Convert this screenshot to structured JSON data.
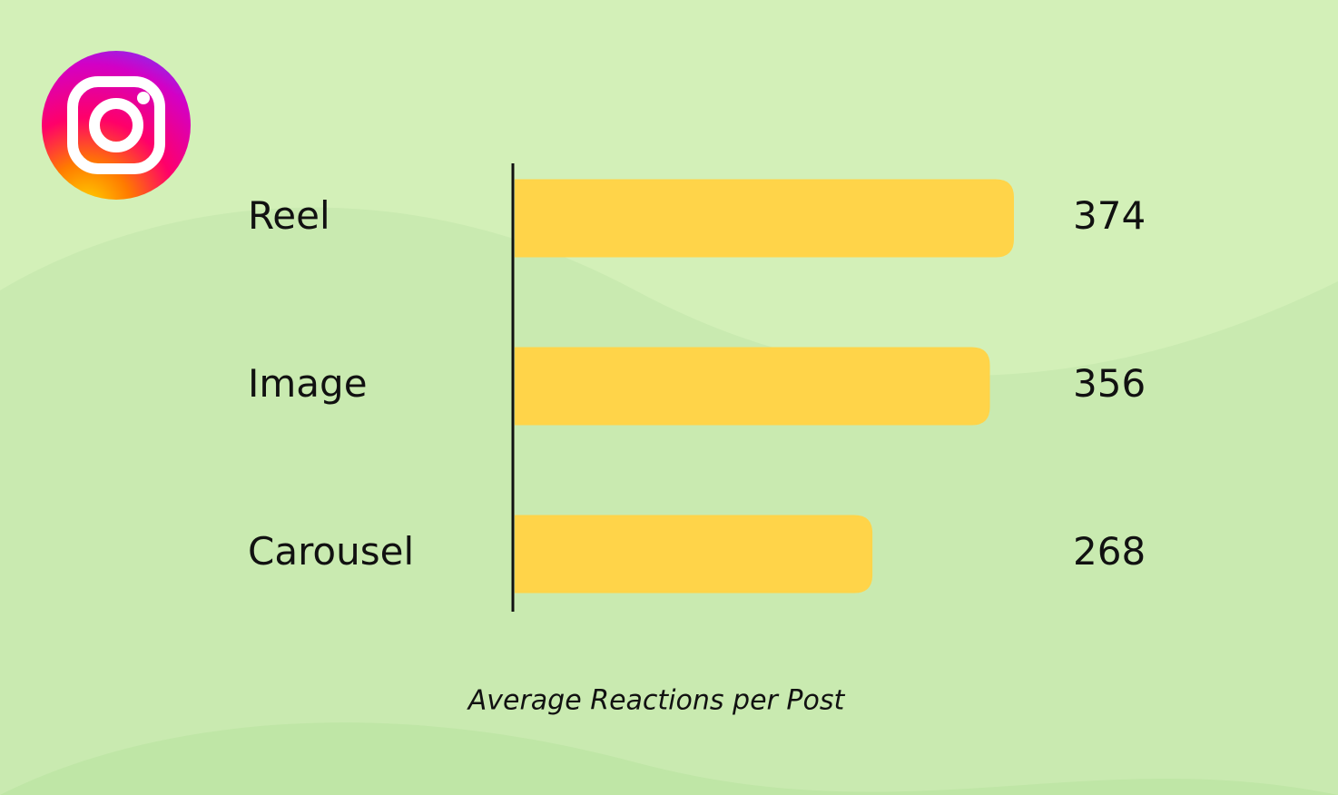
{
  "chart_data": {
    "type": "bar",
    "orientation": "horizontal",
    "categories": [
      "Reel",
      "Image",
      "Carousel"
    ],
    "values": [
      374,
      356,
      268
    ],
    "color": "#ffd449",
    "xlabel": "Average Reactions per Post"
  }
}
